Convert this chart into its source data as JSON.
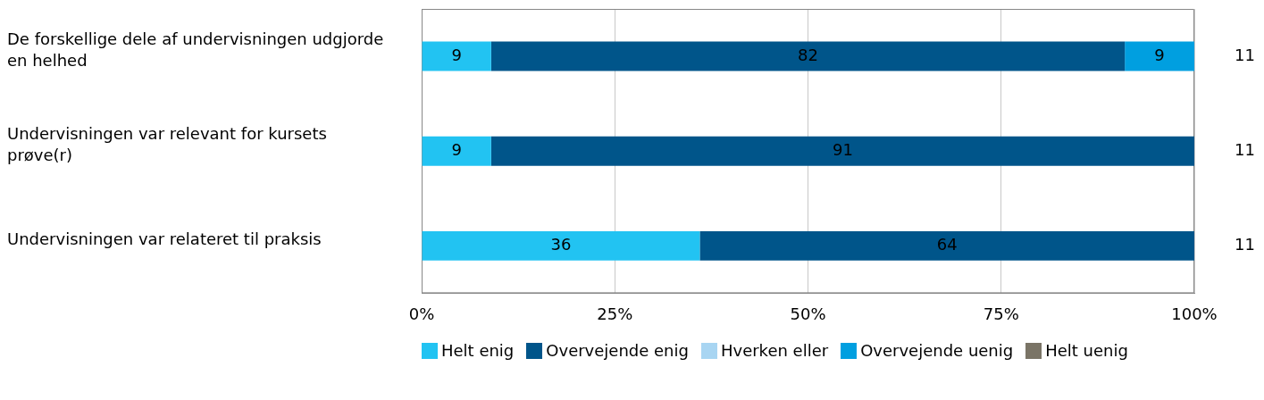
{
  "chart_data": {
    "type": "bar",
    "orientation": "horizontal",
    "stacked": true,
    "categories": [
      "De forskellige dele af undervisningen udgjorde en helhed",
      "Undervisningen var relevant for kursets prøve(r)",
      "Undervisningen var relateret til praksis"
    ],
    "series": [
      {
        "name": "Helt enig",
        "color": "#22c3f2",
        "values": [
          9,
          9,
          36
        ]
      },
      {
        "name": "Overvejende enig",
        "color": "#00558a",
        "values": [
          82,
          91,
          64
        ]
      },
      {
        "name": "Hverken eller",
        "color": "#a8d5f2",
        "values": [
          null,
          null,
          null
        ]
      },
      {
        "name": "Overvejende uenig",
        "color": "#009fe0",
        "values": [
          9,
          null,
          null
        ]
      },
      {
        "name": "Helt uenig",
        "color": "#7a7466",
        "values": [
          null,
          null,
          null
        ]
      }
    ],
    "xlim": [
      0,
      100
    ],
    "xticks": [
      {
        "value": 0,
        "label": "0%"
      },
      {
        "value": 25,
        "label": "25%"
      },
      {
        "value": 50,
        "label": "50%"
      },
      {
        "value": 75,
        "label": "75%"
      },
      {
        "value": 100,
        "label": "100%"
      }
    ],
    "grid": "x",
    "legend": "bottom",
    "data_labels": true,
    "annotations": [
      "11",
      "11",
      "11"
    ]
  }
}
